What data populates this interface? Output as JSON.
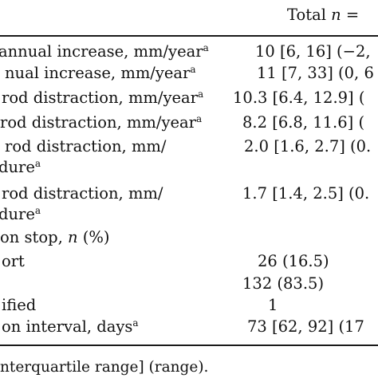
{
  "table": {
    "header": {
      "prefix": "Total ",
      "n": "n",
      "suffix": " ="
    },
    "rows": [
      {
        "label": "annual increase, mm/year",
        "sup": "a",
        "value": "10 [6, 16] (−2,"
      },
      {
        "label": "nual increase, mm/year",
        "sup": "a",
        "value": "11 [7, 33] (0, 6"
      },
      {
        "label": "rod distraction, mm/year",
        "sup": "a",
        "value": "10.3 [6.4, 12.9] ("
      },
      {
        "label": "rod distraction, mm/year",
        "sup": "a",
        "value": "8.2 [6.8, 11.6] ("
      },
      {
        "label": "rod distraction, mm/",
        "sup": "",
        "value": "2.0 [1.6, 2.7] (0."
      },
      {
        "label": "dure",
        "sup": "a",
        "value": ""
      },
      {
        "label": "rod distraction, mm/",
        "sup": "",
        "value": "1.7 [1.4, 2.5] (0."
      },
      {
        "label": "dure",
        "sup": "a",
        "value": ""
      },
      {
        "label": "on stop, ",
        "n": "n",
        "suffix": " (%)",
        "value": ""
      },
      {
        "label": "ort",
        "sup": "",
        "value": "26 (16.5)"
      },
      {
        "label": "",
        "sup": "",
        "value": "132 (83.5)"
      },
      {
        "label": "ified",
        "sup": "",
        "value": "1"
      },
      {
        "label": "on interval, days",
        "sup": "a",
        "value": "73 [62, 92] (17"
      }
    ],
    "footnote": "nterquartile range] (range)."
  }
}
